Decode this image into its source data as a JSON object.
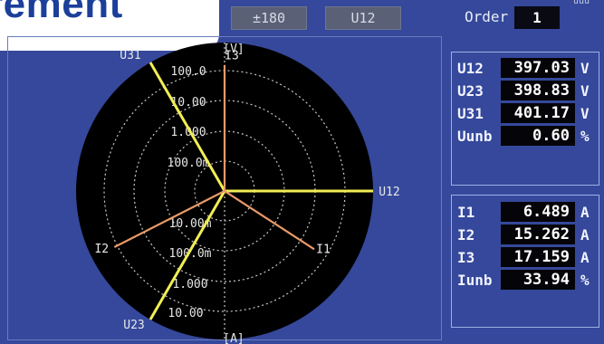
{
  "title_tab": {
    "text": "rement"
  },
  "top_bar": {
    "range_label": "±180",
    "channel_label": "U12",
    "order_label": "Order",
    "order_value": "1",
    "corner_fragment": "uuu"
  },
  "scope": {
    "axis_top_label": "[V]",
    "axis_bottom_label": "[A]",
    "voltage_scale_labels": [
      "100.0",
      "10.00",
      "1.000",
      "100.0m"
    ],
    "current_scale_labels": [
      "10.00m",
      "100.0m",
      "1.000",
      "10.00"
    ],
    "vectors": [
      {
        "label": "U12",
        "magnitude": 397.03,
        "angle_deg": 0,
        "color": "#f2ee54",
        "kind": "voltage"
      },
      {
        "label": "U23",
        "magnitude": 398.83,
        "angle_deg": -120,
        "color": "#f2ee54",
        "kind": "voltage"
      },
      {
        "label": "U31",
        "magnitude": 401.17,
        "angle_deg": 120,
        "color": "#f2ee54",
        "kind": "voltage"
      },
      {
        "label": "I1",
        "magnitude": 6.489,
        "angle_deg": -33,
        "color": "#ea9a68",
        "kind": "current"
      },
      {
        "label": "I2",
        "magnitude": 15.262,
        "angle_deg": -153,
        "color": "#ea9a68",
        "kind": "current"
      },
      {
        "label": "I3",
        "magnitude": 17.159,
        "angle_deg": 90,
        "color": "#ea9a68",
        "kind": "current"
      }
    ]
  },
  "voltage_panel": {
    "rows": [
      {
        "label": "U12",
        "value": "397.03",
        "unit": "V"
      },
      {
        "label": "U23",
        "value": "398.83",
        "unit": "V"
      },
      {
        "label": "U31",
        "value": "401.17",
        "unit": "V"
      },
      {
        "label": "Uunb",
        "value": "0.60",
        "unit": "%"
      }
    ]
  },
  "current_panel": {
    "rows": [
      {
        "label": "I1",
        "value": "6.489",
        "unit": "A"
      },
      {
        "label": "I2",
        "value": "15.262",
        "unit": "A"
      },
      {
        "label": "I3",
        "value": "17.159",
        "unit": "A"
      },
      {
        "label": "Iunb",
        "value": "33.94",
        "unit": "%"
      }
    ]
  },
  "colors": {
    "background": "#35489b",
    "scope": "#000000",
    "voltage_vector": "#f2ee54",
    "current_vector": "#ea9a68",
    "grid": "#c8c8c8"
  }
}
